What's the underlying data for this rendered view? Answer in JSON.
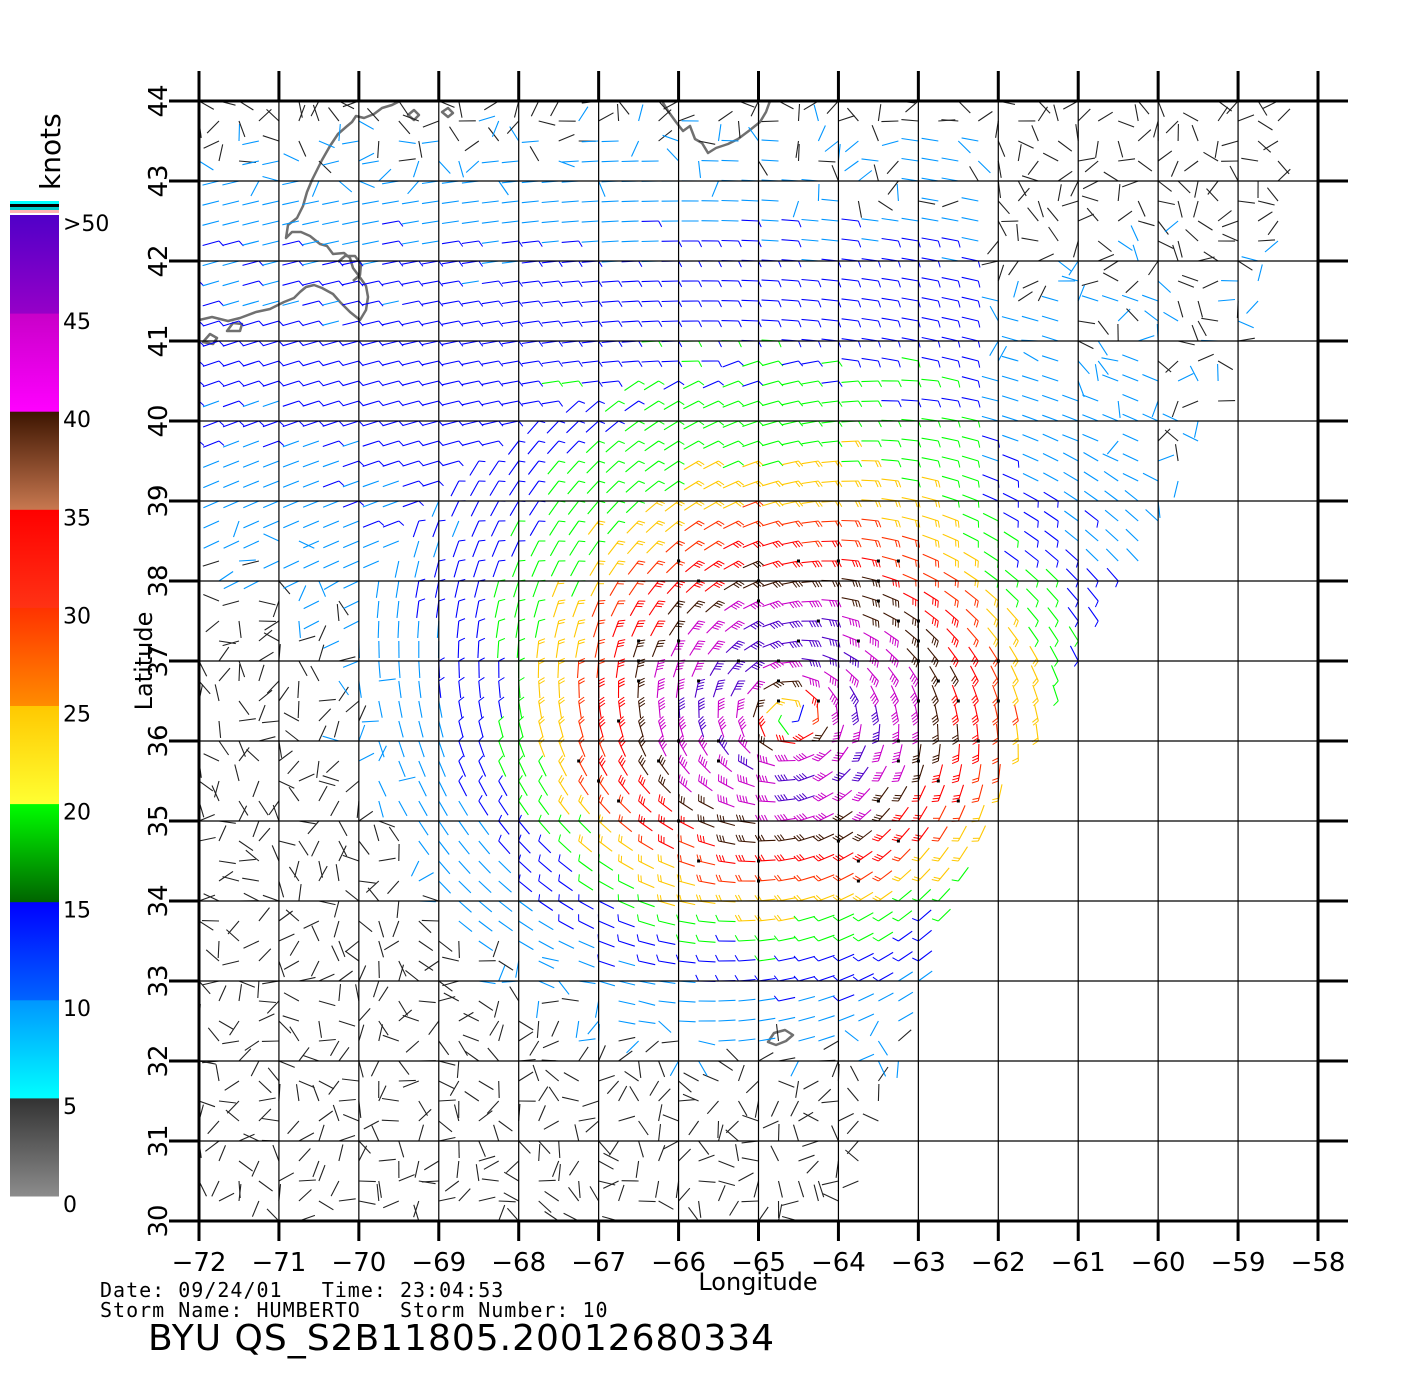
{
  "map": {
    "xlabel": "Longitude",
    "ylabel": "Latitude",
    "lon_range": [
      -72,
      -58
    ],
    "lat_range": [
      30,
      44
    ],
    "lon_ticks": [
      "-72",
      "-71",
      "-70",
      "-69",
      "-68",
      "-67",
      "-66",
      "-65",
      "-64",
      "-63",
      "-62",
      "-61",
      "-60",
      "-59",
      "-58"
    ],
    "lat_ticks": [
      "30",
      "31",
      "32",
      "33",
      "34",
      "35",
      "36",
      "37",
      "38",
      "39",
      "40",
      "41",
      "42",
      "43",
      "44"
    ],
    "grid": true,
    "storm_center": {
      "lon": -64.6,
      "lat": 36.3
    },
    "swath_edge_lonlat": [
      [
        -63.9,
        30.0
      ],
      [
        -62.6,
        34.0
      ],
      [
        -61.2,
        36.5
      ],
      [
        -59.5,
        39.6
      ],
      [
        -58.3,
        42.5
      ],
      [
        -58.3,
        44.0
      ]
    ]
  },
  "legend": {
    "unit": "knots",
    "labels": [
      ">50",
      "45",
      "40",
      "35",
      "30",
      "25",
      "20",
      "15",
      "10",
      "5",
      "0"
    ],
    "colors": [
      {
        "from": 0,
        "to": 5,
        "top": "#323232",
        "bottom": "#8c8c8c"
      },
      {
        "from": 5,
        "to": 10,
        "top": "#0096ff",
        "bottom": "#00ffff"
      },
      {
        "from": 10,
        "to": 15,
        "top": "#0000ff",
        "bottom": "#0064ff"
      },
      {
        "from": 15,
        "to": 20,
        "top": "#00ff00",
        "bottom": "#006400"
      },
      {
        "from": 20,
        "to": 25,
        "top": "#ffc800",
        "bottom": "#ffff32"
      },
      {
        "from": 25,
        "to": 30,
        "top": "#ff3200",
        "bottom": "#ff8c00"
      },
      {
        "from": 30,
        "to": 35,
        "top": "#ff0000",
        "bottom": "#ff3214"
      },
      {
        "from": 35,
        "to": 40,
        "top": "#3c1400",
        "bottom": "#c87850"
      },
      {
        "from": 40,
        "to": 45,
        "top": "#c800c8",
        "bottom": "#ff00ff"
      },
      {
        "from": 45,
        "to": 50,
        "top": "#5000c8",
        "bottom": "#9600c8"
      }
    ]
  },
  "footer": {
    "date_line": "Date: 09/24/01   Time: 23:04:53",
    "storm_line": "Storm Name: HUMBERTO   Storm Number: 10",
    "file_line": "BYU QS_S2B11805.20012680334"
  }
}
